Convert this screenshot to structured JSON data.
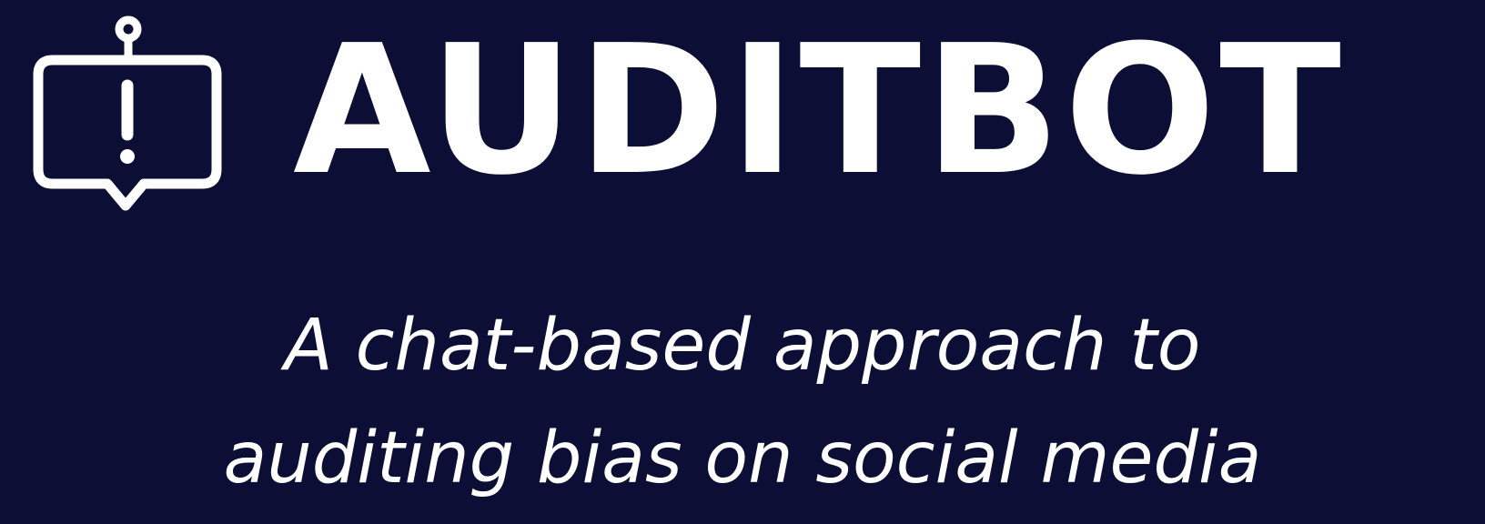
{
  "brand": {
    "name": "AUDITBOT",
    "icon": "robot-alert-chat-icon",
    "text_color": "#ffffff",
    "background_color": "#0c0e35"
  },
  "tagline": {
    "line1": "A chat-based approach to",
    "line2": "auditing bias on social media"
  }
}
